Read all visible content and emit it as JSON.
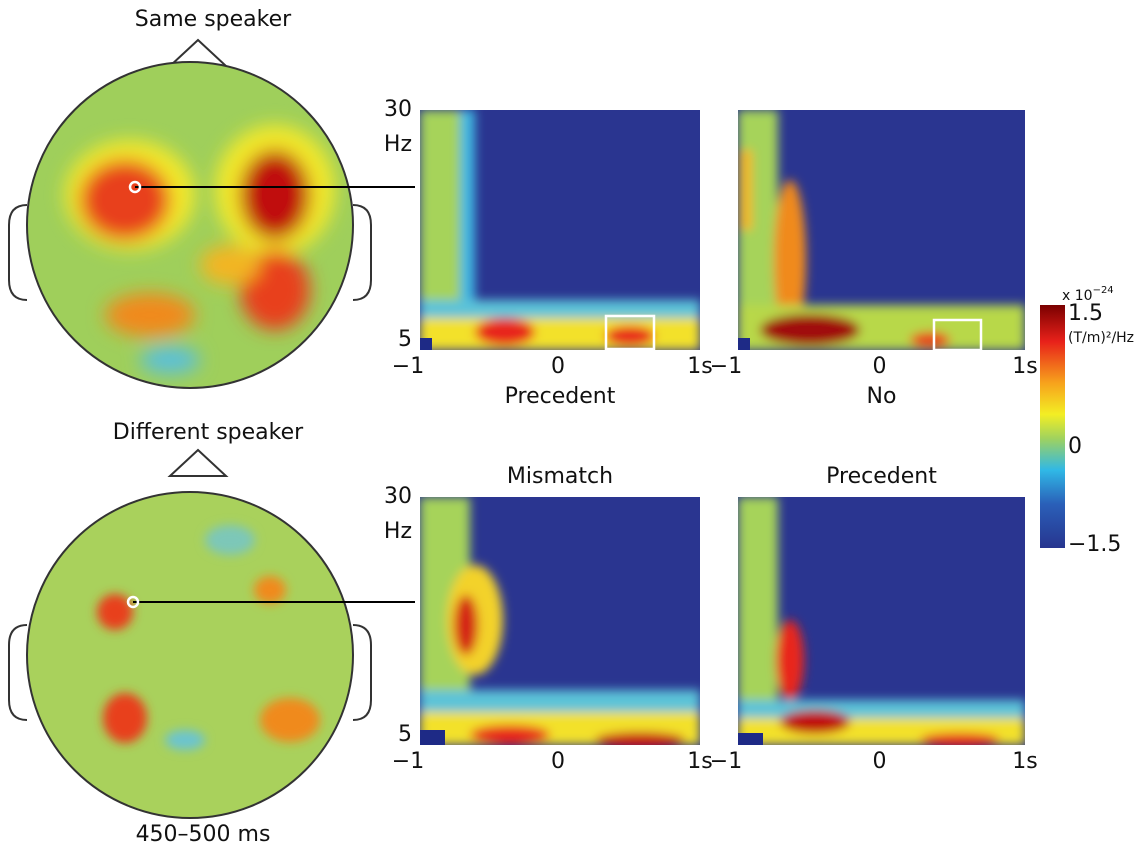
{
  "topomaps": [
    {
      "title": "Same speaker"
    },
    {
      "title": "Different speaker",
      "caption": "450–500 ms"
    }
  ],
  "panels": [
    {
      "label": "Precedent",
      "y_labels": [
        "30",
        "Hz",
        "5"
      ],
      "x_labels": [
        "−1",
        "0",
        "1s"
      ]
    },
    {
      "label": "No",
      "x_labels": [
        "−1",
        "0",
        "1s"
      ]
    },
    {
      "label": "Mismatch",
      "y_labels": [
        "30",
        "Hz",
        "5"
      ],
      "x_labels": [
        "−1",
        "0",
        "1s"
      ]
    },
    {
      "label": "Precedent",
      "x_labels": [
        "−1",
        "0",
        "1s"
      ]
    }
  ],
  "colorbar": {
    "scale": "x 10",
    "exponent": "−24",
    "max": "1.5",
    "unit": "(T/m)²/Hz",
    "mid": "0",
    "min": "−1.5"
  }
}
